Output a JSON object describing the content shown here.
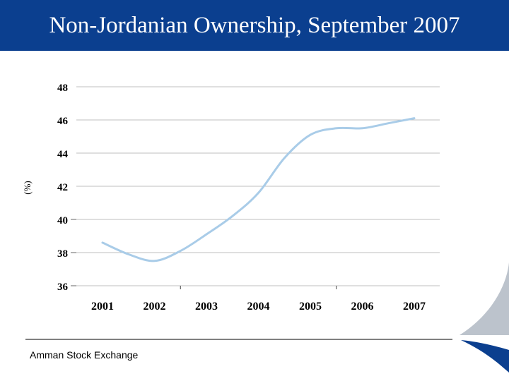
{
  "slide": {
    "title": "Non-Jordanian Ownership, September 2007",
    "source": "Amman Stock Exchange"
  },
  "colors": {
    "title_bar": "#0b3f8f",
    "line": "#a9cce8",
    "grid": "#bfbfbf",
    "swoosh_dark": "#0b3f8f",
    "swoosh_light": "#bcc3cc"
  },
  "chart_data": {
    "type": "line",
    "title": "",
    "xlabel": "",
    "ylabel": "(%)",
    "categories": [
      "2001",
      "2002",
      "2003",
      "2004",
      "2005",
      "2006",
      "2007"
    ],
    "x": [
      2001,
      2002,
      2003,
      2004,
      2005,
      2006,
      2007
    ],
    "y_ticks": [
      "36",
      "38",
      "40",
      "42",
      "44",
      "46",
      "48"
    ],
    "ylim": [
      36,
      48
    ],
    "grid": true,
    "series": [
      {
        "name": "Non-Jordanian ownership",
        "x": [
          2001,
          2001.5,
          2002,
          2002.5,
          2003,
          2003.5,
          2004,
          2004.5,
          2005,
          2005.5,
          2006,
          2006.5,
          2007
        ],
        "values": [
          38.6,
          37.9,
          37.5,
          38.1,
          39.1,
          40.2,
          41.6,
          43.7,
          45.1,
          45.5,
          45.5,
          45.8,
          46.1
        ]
      }
    ]
  }
}
